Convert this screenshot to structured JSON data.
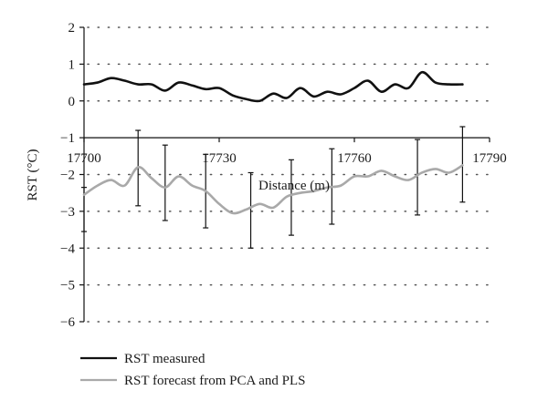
{
  "chart_data": {
    "type": "line",
    "xlabel": "Distance (m)",
    "ylabel": "RST (°C)",
    "xlim": [
      17700,
      17790
    ],
    "ylim": [
      -6,
      2
    ],
    "x_ticks": [
      "17700",
      "17730",
      "17760",
      "17790"
    ],
    "y_ticks": [
      "2",
      "1",
      "0",
      "−1",
      "−2",
      "−3",
      "−4",
      "−5",
      "−6"
    ],
    "grid": "dotted horizontal",
    "legend_position": "bottom-left",
    "colors": {
      "measured": "#111111",
      "forecast": "#a9a9a9",
      "error_bars": "#111111"
    },
    "series": [
      {
        "name": "RST measured",
        "x": [
          17700,
          17703,
          17706,
          17709,
          17712,
          17715,
          17718,
          17721,
          17724,
          17727,
          17730,
          17733,
          17736,
          17739,
          17742,
          17745,
          17748,
          17751,
          17754,
          17757,
          17760,
          17763,
          17766,
          17769,
          17772,
          17775,
          17778,
          17781,
          17784
        ],
        "values": [
          0.45,
          0.5,
          0.62,
          0.55,
          0.45,
          0.45,
          0.28,
          0.5,
          0.42,
          0.32,
          0.35,
          0.15,
          0.05,
          0.0,
          0.2,
          0.08,
          0.35,
          0.12,
          0.25,
          0.18,
          0.35,
          0.55,
          0.25,
          0.45,
          0.35,
          0.78,
          0.5,
          0.45,
          0.45
        ]
      },
      {
        "name": "RST forecast from PCA and PLS",
        "x": [
          17700,
          17703,
          17706,
          17709,
          17712,
          17715,
          17718,
          17721,
          17724,
          17727,
          17730,
          17733,
          17736,
          17739,
          17742,
          17745,
          17748,
          17751,
          17754,
          17757,
          17760,
          17763,
          17766,
          17769,
          17772,
          17775,
          17778,
          17781,
          17784
        ],
        "values": [
          -2.55,
          -2.3,
          -2.15,
          -2.3,
          -1.8,
          -2.1,
          -2.35,
          -2.05,
          -2.3,
          -2.45,
          -2.8,
          -3.05,
          -2.95,
          -2.8,
          -2.9,
          -2.6,
          -2.5,
          -2.45,
          -2.35,
          -2.3,
          -2.05,
          -2.05,
          -1.9,
          -2.05,
          -2.15,
          -1.95,
          -1.85,
          -1.95,
          -1.75
        ]
      }
    ],
    "error_bars": [
      {
        "x": 17700,
        "low": -3.55,
        "high": -2.35
      },
      {
        "x": 17712,
        "low": -2.85,
        "high": -0.8
      },
      {
        "x": 17718,
        "low": -3.25,
        "high": -1.2
      },
      {
        "x": 17727,
        "low": -3.45,
        "high": -1.45
      },
      {
        "x": 17737,
        "low": -4.0,
        "high": -1.95
      },
      {
        "x": 17746,
        "low": -3.65,
        "high": -1.6
      },
      {
        "x": 17755,
        "low": -3.35,
        "high": -1.3
      },
      {
        "x": 17774,
        "low": -3.1,
        "high": -1.05
      },
      {
        "x": 17784,
        "low": -2.75,
        "high": -0.7
      }
    ]
  }
}
